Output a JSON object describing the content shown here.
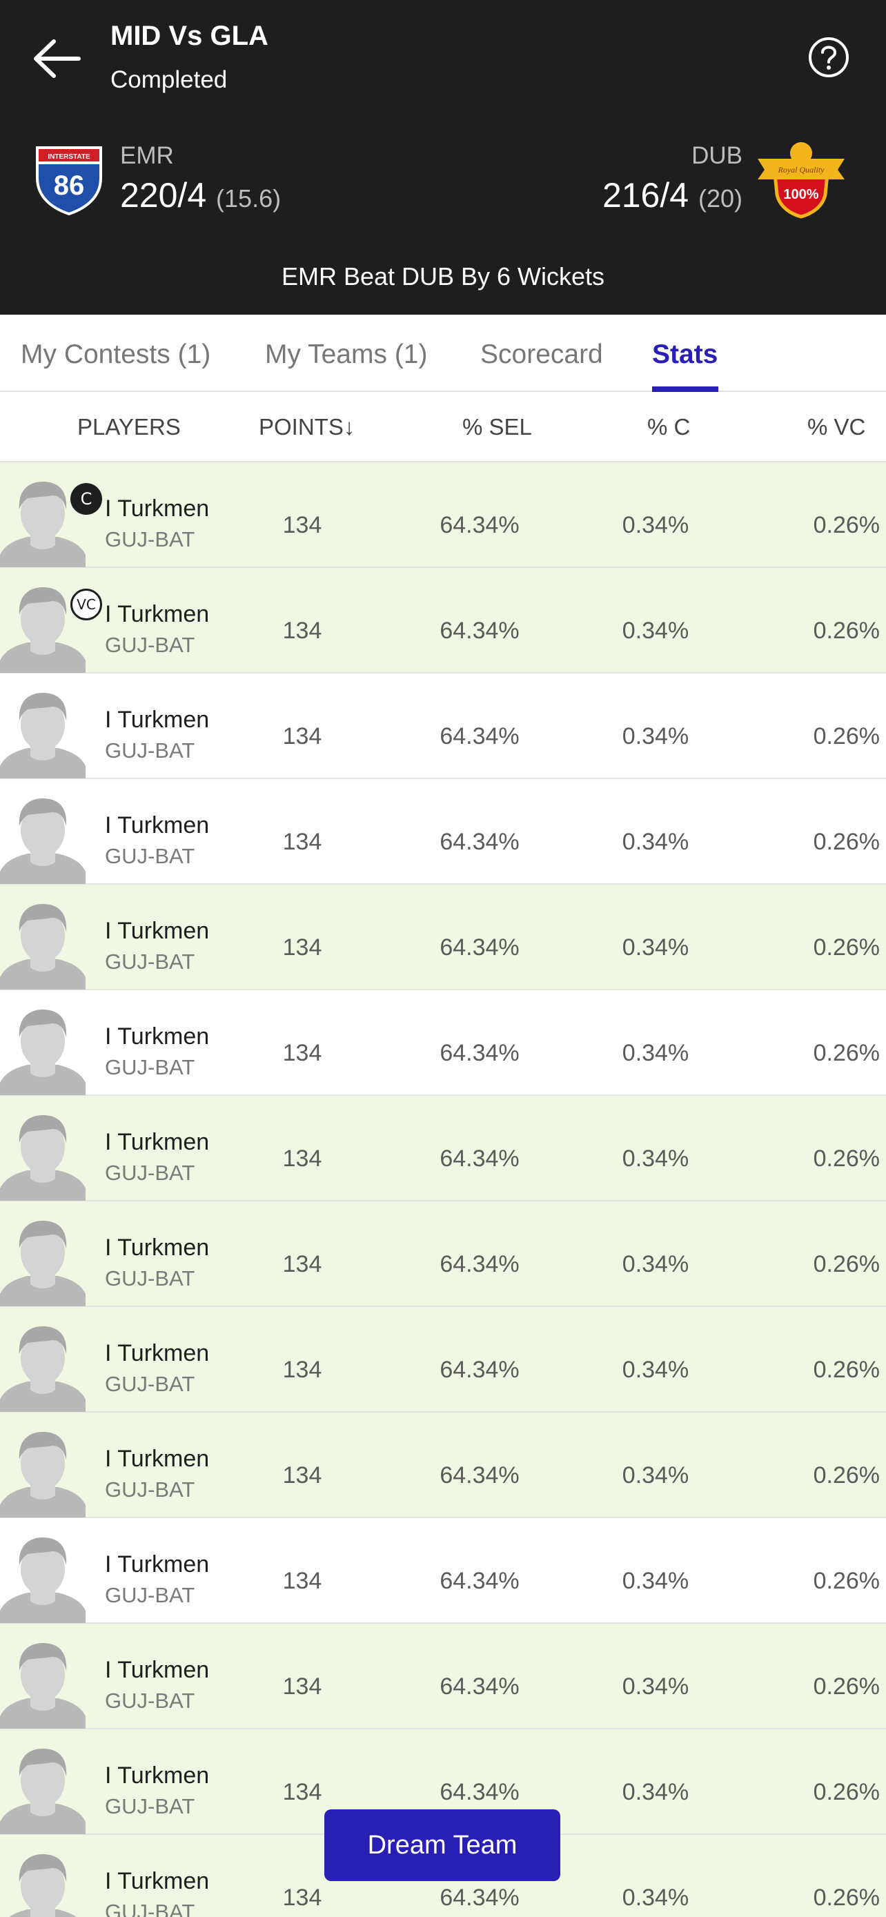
{
  "header": {
    "title": "MID Vs GLA",
    "status": "Completed",
    "back_icon": "arrow-left-icon",
    "help_icon": "help-circle-icon",
    "team_left": {
      "name": "EMR",
      "score": "220/4",
      "overs": "(15.6)",
      "logo_text": "86",
      "logo_banner": "INTERSTATE"
    },
    "team_right": {
      "name": "DUB",
      "score": "216/4",
      "overs": "(20)",
      "logo_text": "100%",
      "logo_banner": "Royal Quality"
    },
    "result": "EMR Beat DUB By 6 Wickets"
  },
  "tabs": [
    {
      "label": "My Contests (1)",
      "active": false
    },
    {
      "label": "My Teams (1)",
      "active": false
    },
    {
      "label": "Scorecard",
      "active": false
    },
    {
      "label": "Stats",
      "active": true
    }
  ],
  "columns": {
    "players": "PLAYERS",
    "points": "POINTS",
    "points_sort_icon": "arrow-down-icon",
    "sel": "% SEL",
    "c": "% C",
    "vc": "% VC"
  },
  "colors": {
    "header_bg": "#1e1e1e",
    "accent": "#2a1fb4",
    "highlight_row": "#f0f8e4"
  },
  "players": [
    {
      "name": "I Turkmen",
      "team": "GUJ-BAT",
      "points": "134",
      "sel": "64.34%",
      "c": "0.34%",
      "vc": "0.26%",
      "badge": "C",
      "highlight": true
    },
    {
      "name": "I Turkmen",
      "team": "GUJ-BAT",
      "points": "134",
      "sel": "64.34%",
      "c": "0.34%",
      "vc": "0.26%",
      "badge": "VC",
      "highlight": true
    },
    {
      "name": "I Turkmen",
      "team": "GUJ-BAT",
      "points": "134",
      "sel": "64.34%",
      "c": "0.34%",
      "vc": "0.26%",
      "badge": "",
      "highlight": false
    },
    {
      "name": "I Turkmen",
      "team": "GUJ-BAT",
      "points": "134",
      "sel": "64.34%",
      "c": "0.34%",
      "vc": "0.26%",
      "badge": "",
      "highlight": false
    },
    {
      "name": "I Turkmen",
      "team": "GUJ-BAT",
      "points": "134",
      "sel": "64.34%",
      "c": "0.34%",
      "vc": "0.26%",
      "badge": "",
      "highlight": true
    },
    {
      "name": "I Turkmen",
      "team": "GUJ-BAT",
      "points": "134",
      "sel": "64.34%",
      "c": "0.34%",
      "vc": "0.26%",
      "badge": "",
      "highlight": false
    },
    {
      "name": "I Turkmen",
      "team": "GUJ-BAT",
      "points": "134",
      "sel": "64.34%",
      "c": "0.34%",
      "vc": "0.26%",
      "badge": "",
      "highlight": true
    },
    {
      "name": "I Turkmen",
      "team": "GUJ-BAT",
      "points": "134",
      "sel": "64.34%",
      "c": "0.34%",
      "vc": "0.26%",
      "badge": "",
      "highlight": true
    },
    {
      "name": "I Turkmen",
      "team": "GUJ-BAT",
      "points": "134",
      "sel": "64.34%",
      "c": "0.34%",
      "vc": "0.26%",
      "badge": "",
      "highlight": true
    },
    {
      "name": "I Turkmen",
      "team": "GUJ-BAT",
      "points": "134",
      "sel": "64.34%",
      "c": "0.34%",
      "vc": "0.26%",
      "badge": "",
      "highlight": true
    },
    {
      "name": "I Turkmen",
      "team": "GUJ-BAT",
      "points": "134",
      "sel": "64.34%",
      "c": "0.34%",
      "vc": "0.26%",
      "badge": "",
      "highlight": false
    },
    {
      "name": "I Turkmen",
      "team": "GUJ-BAT",
      "points": "134",
      "sel": "64.34%",
      "c": "0.34%",
      "vc": "0.26%",
      "badge": "",
      "highlight": true
    },
    {
      "name": "I Turkmen",
      "team": "GUJ-BAT",
      "points": "134",
      "sel": "64.34%",
      "c": "0.34%",
      "vc": "0.26%",
      "badge": "",
      "highlight": true
    },
    {
      "name": "I Turkmen",
      "team": "GUJ-BAT",
      "points": "134",
      "sel": "64.34%",
      "c": "0.34%",
      "vc": "0.26%",
      "badge": "",
      "highlight": true
    }
  ],
  "dream_team_button": "Dream Team"
}
